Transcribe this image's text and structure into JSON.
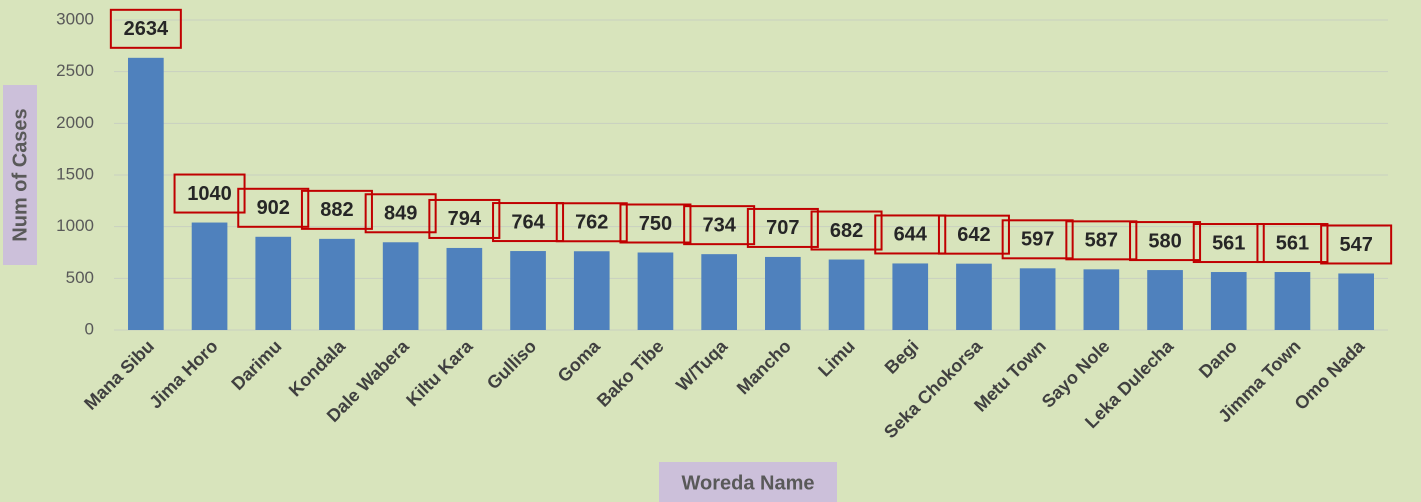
{
  "chart_data": {
    "type": "bar",
    "x_label": "Woreda Name",
    "y_label": "Num of Cases",
    "categories": [
      "Mana Sibu",
      "Jima Horo",
      "Darimu",
      "Kondala",
      "Dale Wabera",
      "Kiltu Kara",
      "Gulliso",
      "Goma",
      "Bako Tibe",
      "W/Tuqa",
      "Mancho",
      "Limu",
      "Begi",
      "Seka Chokorsa",
      "Metu Town",
      "Sayo Nole",
      "Leka  Dulecha",
      "Dano",
      "Jimma Town",
      "Omo Nada"
    ],
    "values": [
      2634,
      1040,
      902,
      882,
      849,
      794,
      764,
      762,
      750,
      734,
      707,
      682,
      644,
      642,
      597,
      587,
      580,
      561,
      561,
      547
    ],
    "color": "#4f81bd",
    "ylim": [
      0,
      3000
    ],
    "yticks": [
      0,
      500,
      1000,
      1500,
      2000,
      2500,
      3000
    ],
    "grid": true
  }
}
